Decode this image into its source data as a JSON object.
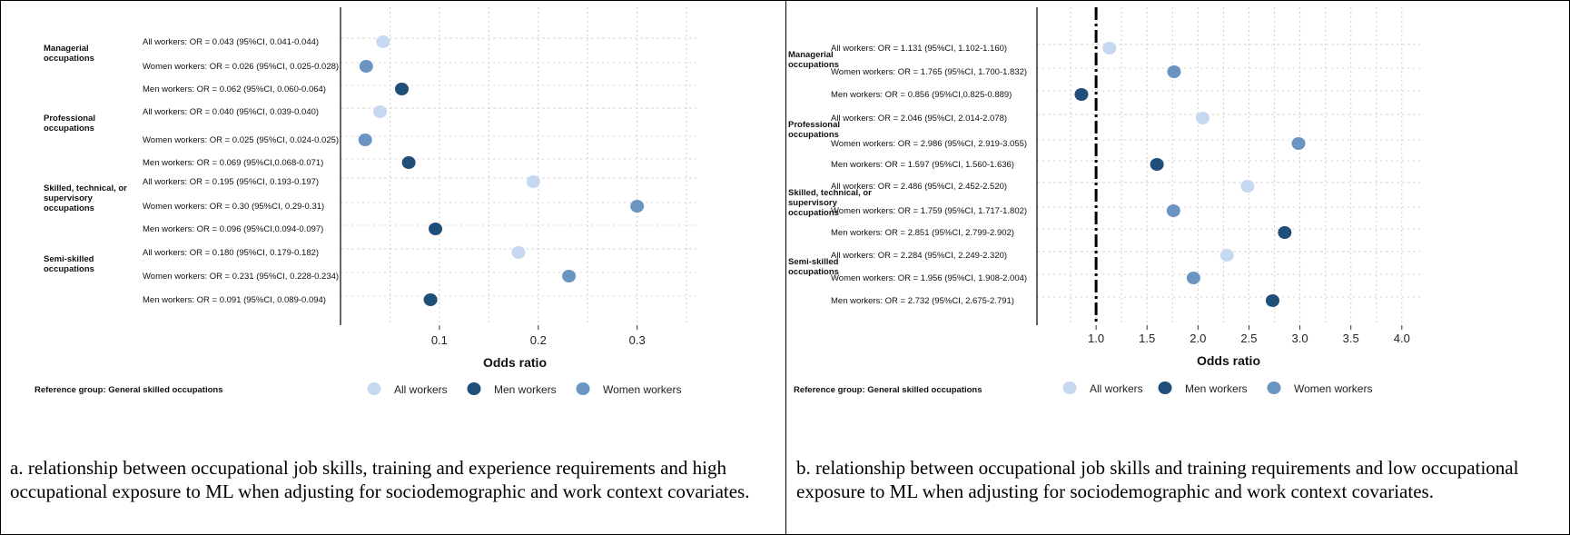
{
  "colors": {
    "all": "#c6d9f1",
    "men": "#1f4e79",
    "women": "#6a95c2"
  },
  "chart_data": [
    {
      "type": "scatter",
      "xlabel": "Odds ratio",
      "xticks": [
        "0.1",
        "0.2",
        "0.3"
      ],
      "xtick_values": [
        0.1,
        0.2,
        0.3
      ],
      "xlim": [
        0.0,
        0.36
      ],
      "reference_line": null,
      "reference_note": "Reference group: General skilled occupations",
      "legend": [
        "All workers",
        "Men workers",
        "Women workers"
      ],
      "groups": [
        {
          "name": "Managerial occupations",
          "lines": [
            "Managerial",
            "occupations"
          ],
          "rows": [
            {
              "series": "all",
              "label": "All workers: OR =  0.043 (95%CI, 0.041-0.044)",
              "value": 0.043
            },
            {
              "series": "women",
              "label": "Women workers: OR = 0.026 (95%CI, 0.025-0.028)",
              "value": 0.026
            },
            {
              "series": "men",
              "label": "Men workers: OR = 0.062 (95%CI, 0.060-0.064)",
              "value": 0.062
            }
          ]
        },
        {
          "name": "Professional occupations",
          "lines": [
            "Professional",
            "occupations"
          ],
          "rows": [
            {
              "series": "all",
              "label": "All workers: OR =  0.040 (95%CI, 0.039-0.040)",
              "value": 0.04
            },
            {
              "series": "women",
              "label": "Women workers: OR = 0.025 (95%CI, 0.024-0.025)",
              "value": 0.025
            },
            {
              "series": "men",
              "label": "Men workers: OR = 0.069 (95%CI,0.068-0.071)",
              "value": 0.069
            }
          ]
        },
        {
          "name": "Skilled, technical, or supervisory occupations",
          "lines": [
            "Skilled, technical, or",
            "supervisory",
            "occupations"
          ],
          "rows": [
            {
              "series": "all",
              "label": "All workers: OR = 0.195 (95%CI, 0.193-0.197)",
              "value": 0.195
            },
            {
              "series": "women",
              "label": "Women workers: OR = 0.30 (95%CI, 0.29-0.31)",
              "value": 0.3
            },
            {
              "series": "men",
              "label": "Men workers: OR = 0.096 (95%CI,0.094-0.097)",
              "value": 0.096
            }
          ]
        },
        {
          "name": "Semi-skilled occupations",
          "lines": [
            "Semi-skilled",
            "occupations"
          ],
          "rows": [
            {
              "series": "all",
              "label": "All workers: OR = 0.180 (95%CI, 0.179-0.182)",
              "value": 0.18
            },
            {
              "series": "women",
              "label": "Women workers: OR = 0.231 (95%CI, 0.228-0.234)",
              "value": 0.231
            },
            {
              "series": "men",
              "label": "Men workers: OR = 0.091 (95%CI, 0.089-0.094)",
              "value": 0.091
            }
          ]
        }
      ]
    },
    {
      "type": "scatter",
      "xlabel": "Odds ratio",
      "xticks": [
        "1.0",
        "1.5",
        "2.0",
        "2.5",
        "3.0",
        "3.5",
        "4.0"
      ],
      "xtick_values": [
        1.0,
        1.5,
        2.0,
        2.5,
        3.0,
        3.5,
        4.0
      ],
      "xlim": [
        0.42,
        4.18
      ],
      "reference_line": 1.0,
      "reference_note": "Reference group: General skilled occupations",
      "legend": [
        "All workers",
        "Men workers",
        "Women workers"
      ],
      "groups": [
        {
          "name": "Managerial occupations",
          "lines": [
            "Managerial",
            "occupations"
          ],
          "rows": [
            {
              "series": "all",
              "label": "All workers: OR =  1.131 (95%CI, 1.102-1.160)",
              "value": 1.131
            },
            {
              "series": "women",
              "label": "Women workers: OR = 1.765 (95%CI, 1.700-1.832)",
              "value": 1.765
            },
            {
              "series": "men",
              "label": "Men workers: OR = 0.856 (95%CI,0.825-0.889)",
              "value": 0.856
            }
          ]
        },
        {
          "name": "Professional occupations",
          "lines": [
            "Professional",
            "occupations"
          ],
          "rows": [
            {
              "series": "all",
              "label": "All workers: OR =  2.046 (95%CI, 2.014-2.078)",
              "value": 2.046
            },
            {
              "series": "women",
              "label": "Women workers: OR = 2.986 (95%CI, 2.919-3.055)",
              "value": 2.986
            },
            {
              "series": "men",
              "label": "Men workers: OR = 1.597 (95%CI, 1.560-1.636)",
              "value": 1.597
            }
          ]
        },
        {
          "name": "Skilled, technical, or supervisory occupations",
          "lines": [
            "Skilled, technical, or",
            "supervisory",
            "occupations"
          ],
          "rows": [
            {
              "series": "all",
              "label": "All workers: OR = 2.486 (95%CI, 2.452-2.520)",
              "value": 2.486
            },
            {
              "series": "women",
              "label": "Women workers: OR = 1.759 (95%CI, 1.717-1.802)",
              "value": 1.759
            },
            {
              "series": "men",
              "label": "Men workers: OR = 2.851 (95%CI, 2.799-2.902)",
              "value": 2.851
            }
          ]
        },
        {
          "name": "Semi-skilled occupations",
          "lines": [
            "Semi-skilled",
            "occupations"
          ],
          "rows": [
            {
              "series": "all",
              "label": "All workers: OR = 2.284 (95%CI, 2.249-2.320)",
              "value": 2.284
            },
            {
              "series": "women",
              "label": "Women workers: OR = 1.956 (95%CI, 1.908-2.004)",
              "value": 1.956
            },
            {
              "series": "men",
              "label": "Men workers: OR = 2.732 (95%CI, 2.675-2.791)",
              "value": 2.732
            }
          ]
        }
      ]
    }
  ],
  "captions": [
    "a. relationship between occupational job skills, training and experience requirements and high occupational exposure to ML when adjusting for sociodemographic and work context covariates.",
    "b. relationship between occupational job skills and training requirements and low occupational exposure to ML when adjusting for sociodemographic and work context covariates."
  ]
}
